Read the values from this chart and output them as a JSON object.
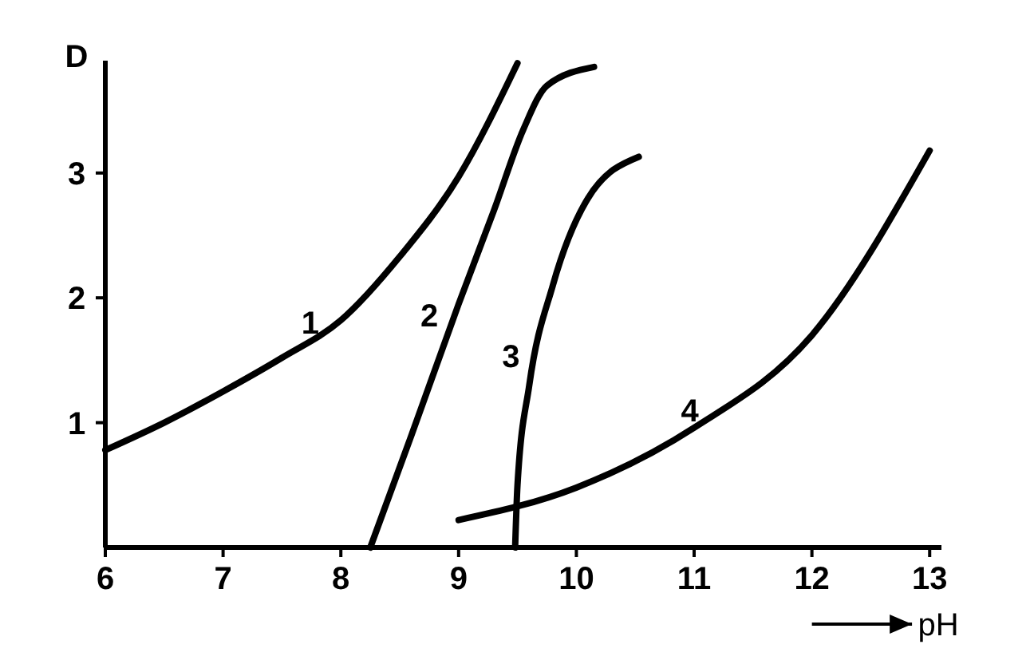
{
  "chart_data": {
    "type": "line",
    "xlabel": "pH",
    "ylabel": "D",
    "xlim": [
      6,
      13.1
    ],
    "ylim": [
      0,
      3.9
    ],
    "xticks": [
      6,
      7,
      8,
      9,
      10,
      11,
      12,
      13
    ],
    "yticks": [
      1,
      2,
      3
    ],
    "grid": false,
    "marker": "none",
    "line_style": "solid",
    "series": [
      {
        "name": "1",
        "color": "#000000",
        "x": [
          6,
          6.5,
          7,
          7.5,
          8,
          8.5,
          9,
          9.5
        ],
        "values": [
          0.78,
          1.0,
          1.25,
          1.52,
          1.82,
          2.33,
          2.97,
          3.88
        ]
      },
      {
        "name": "2",
        "color": "#000000",
        "x": [
          8.25,
          8.6,
          9.0,
          9.3,
          9.55,
          9.75,
          10.15
        ],
        "values": [
          0,
          0.9,
          1.95,
          2.7,
          3.35,
          3.7,
          3.85
        ]
      },
      {
        "name": "3",
        "color": "#000000",
        "x": [
          9.48,
          9.5,
          9.6,
          9.8,
          10.1,
          10.53
        ],
        "values": [
          0,
          0.5,
          1.3,
          2.1,
          2.8,
          3.13
        ]
      },
      {
        "name": "4",
        "color": "#000000",
        "x": [
          9,
          10,
          11,
          12,
          13
        ],
        "values": [
          0.22,
          0.48,
          0.96,
          1.7,
          3.18
        ]
      }
    ]
  }
}
